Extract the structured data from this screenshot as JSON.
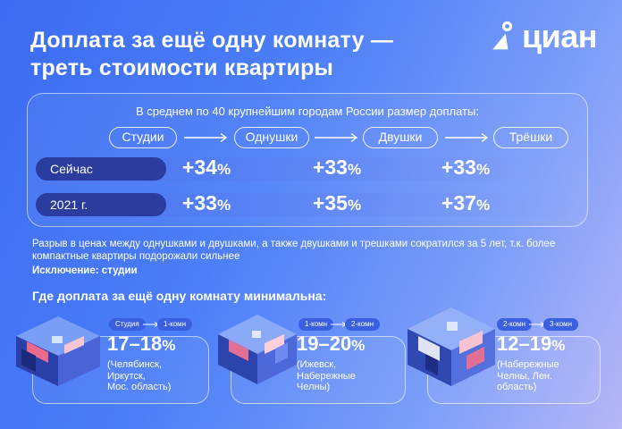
{
  "header": {
    "title_line1": "Доплата за ещё одну комнату —",
    "title_line2": "треть стоимости квартиры",
    "logo_text": "циан"
  },
  "panel": {
    "subtitle": "В среднем по 40 крупнейшим городам России размер доплаты:",
    "categories": [
      "Студии",
      "Однушки",
      "Двушки",
      "Трёшки"
    ],
    "rows": [
      {
        "label": "Сейчас",
        "values": [
          "+34",
          "+33",
          "+33"
        ]
      },
      {
        "label": "2021 г.",
        "values": [
          "+33",
          "+35",
          "+37"
        ]
      }
    ],
    "percent_sign": "%"
  },
  "note": {
    "text": "Разрыв в ценах между однушками и двушками, а также двушками и трешками сократился за 5 лет, т.к. более компактные квартиры подорожали сильнее",
    "exception": "Исключение: студии"
  },
  "min_section": {
    "title": "Где доплата за ещё одну комнату минимальна:",
    "cards": [
      {
        "tag_from": "Студия",
        "tag_to": "1-комн",
        "range": "17–18",
        "cities": [
          "(Челябинск,",
          "Иркутск,",
          "Мос. область)"
        ]
      },
      {
        "tag_from": "1-комн",
        "tag_to": "2-комн",
        "range": "19–20",
        "cities": [
          "(Ижевск,",
          "Набережные",
          "Челны)"
        ]
      },
      {
        "tag_from": "2-комн",
        "tag_to": "3-комн",
        "range": "12–19",
        "cities": [
          "(Набережные",
          "Челны, Лен.",
          "область)"
        ]
      }
    ]
  },
  "colors": {
    "row_label_bg": "#2a3d9e",
    "tag_bg": "#3a5fe0",
    "background_start": "#3c6cf2",
    "background_end": "#b7b6f6"
  },
  "icons": [
    "location-pin-logo-icon",
    "arrow-right-icon",
    "apartment-illustration-icon"
  ]
}
